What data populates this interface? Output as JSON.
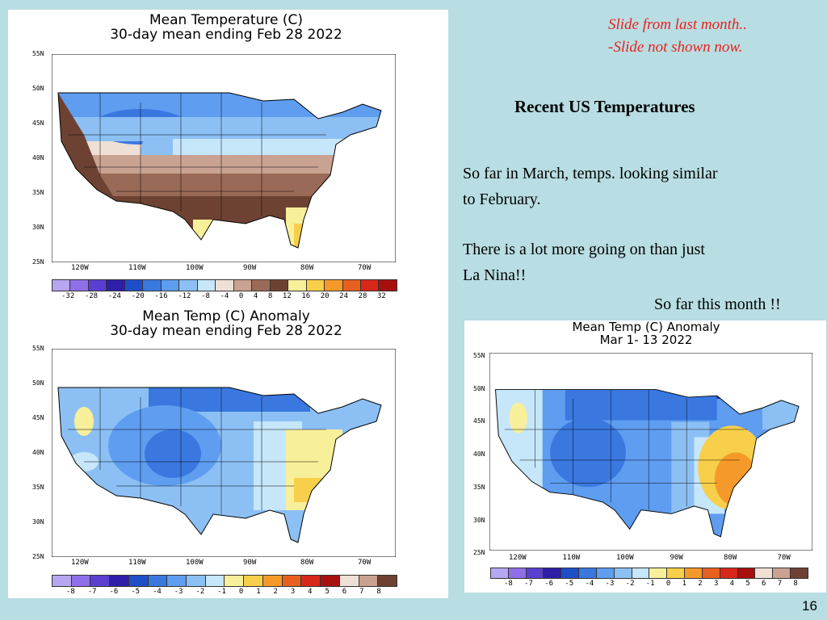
{
  "slide": {
    "note_line1": "Slide from last month..",
    "note_line2": "-Slide not shown now.",
    "heading": "Recent US Temperatures",
    "para1_line1": "So far in March, temps. looking similar",
    "para1_line2": "to February.",
    "para2_line1": "There is a lot more going on than just",
    "para2_line2": "La Nina!!",
    "this_month_label": "So far this month !!",
    "page_number": "16"
  },
  "maps": {
    "mean_temp": {
      "title_line1": "Mean Temperature (C)",
      "title_line2": "30-day mean ending Feb 28 2022",
      "lat_labels": [
        "55N",
        "50N",
        "45N",
        "40N",
        "35N",
        "30N",
        "25N"
      ],
      "lon_labels": [
        "120W",
        "110W",
        "100W",
        "90W",
        "80W",
        "70W"
      ],
      "legend_labels": [
        "-32",
        "-28",
        "-24",
        "-20",
        "-16",
        "-12",
        "-8",
        "-4",
        "0",
        "4",
        "8",
        "12",
        "16",
        "20",
        "24",
        "28",
        "32"
      ],
      "legend_colors": [
        "#b7a6f0",
        "#8f6fe8",
        "#5a3fd0",
        "#2f1fa8",
        "#1f4fc8",
        "#3a78e0",
        "#5e9df0",
        "#8cc0f5",
        "#c6e6fa",
        "#efe0d6",
        "#c9a292",
        "#9a6a58",
        "#6e4232",
        "#f8ef9a",
        "#f8cf4a",
        "#f59a2a",
        "#e8601f",
        "#d8281a",
        "#a81010"
      ]
    },
    "anomaly_feb": {
      "title_line1": "Mean Temp (C) Anomaly",
      "title_line2": "30-day mean ending Feb 28 2022",
      "lat_labels": [
        "55N",
        "50N",
        "45N",
        "40N",
        "35N",
        "30N",
        "25N"
      ],
      "lon_labels": [
        "120W",
        "110W",
        "100W",
        "90W",
        "80W",
        "70W"
      ],
      "legend_labels": [
        "-8",
        "-7",
        "-6",
        "-5",
        "-4",
        "-3",
        "-2",
        "-1",
        "0",
        "1",
        "2",
        "3",
        "4",
        "5",
        "6",
        "7",
        "8"
      ],
      "legend_colors": [
        "#b7a6f0",
        "#8f6fe8",
        "#5a3fd0",
        "#2f1fa8",
        "#1f4fc8",
        "#3a78e0",
        "#5e9df0",
        "#8cc0f5",
        "#c6e6fa",
        "#f8ef9a",
        "#f8cf4a",
        "#f59a2a",
        "#e8601f",
        "#d8281a",
        "#a81010",
        "#efe0d6",
        "#c9a292",
        "#6e4232"
      ]
    },
    "anomaly_mar": {
      "title_line1": "Mean Temp (C) Anomaly",
      "title_line2": "Mar 1- 13 2022",
      "lat_labels": [
        "55N",
        "50N",
        "45N",
        "40N",
        "35N",
        "30N",
        "25N"
      ],
      "lon_labels": [
        "120W",
        "110W",
        "100W",
        "90W",
        "80W",
        "70W"
      ],
      "legend_labels": [
        "-8",
        "-7",
        "-6",
        "-5",
        "-4",
        "-3",
        "-2",
        "-1",
        "0",
        "1",
        "2",
        "3",
        "4",
        "5",
        "6",
        "7",
        "8"
      ],
      "legend_colors": [
        "#b7a6f0",
        "#8f6fe8",
        "#5a3fd0",
        "#2f1fa8",
        "#1f4fc8",
        "#3a78e0",
        "#5e9df0",
        "#8cc0f5",
        "#c6e6fa",
        "#f8ef9a",
        "#f8cf4a",
        "#f59a2a",
        "#e8601f",
        "#d8281a",
        "#a81010",
        "#efe0d6",
        "#c9a292",
        "#6e4232"
      ]
    }
  }
}
